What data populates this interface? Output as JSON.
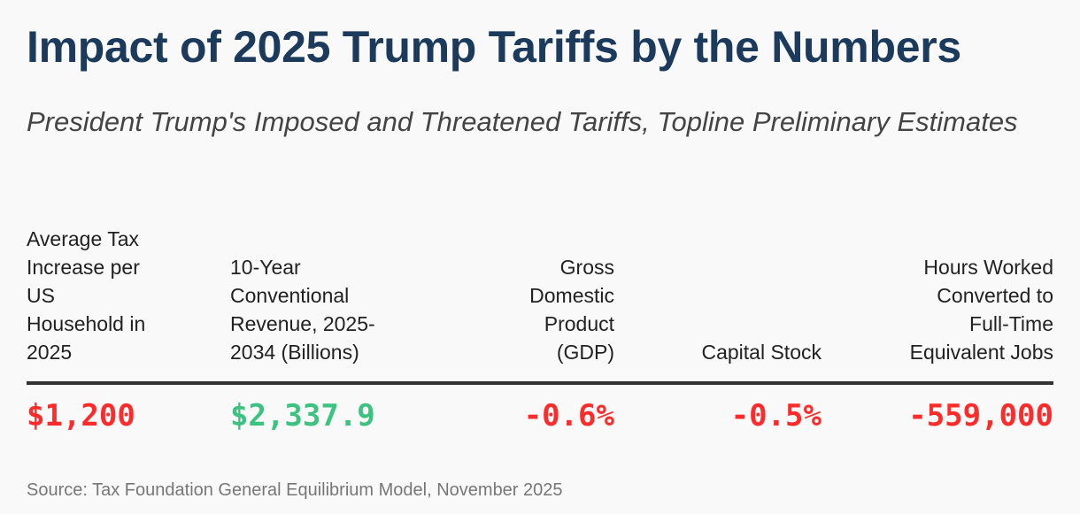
{
  "title": "Impact of 2025 Trump Tariffs by the Numbers",
  "subtitle": "President Trump's Imposed and Threatened Tariffs, Topline Preliminary Estimates",
  "source": "Source: Tax Foundation General Equilibrium Model, November 2025",
  "colors": {
    "title": "#1b3a5c",
    "negative": "#ff2a2a",
    "positive": "#3cc37f"
  },
  "chart_data": {
    "type": "table",
    "columns": [
      {
        "header": [
          "Average Tax",
          "Increase per",
          "US",
          "Household in",
          "2025"
        ],
        "value": "$1,200",
        "sentiment": "negative"
      },
      {
        "header": [
          "10-Year",
          "Conventional",
          "Revenue, 2025-",
          "2034 (Billions)"
        ],
        "value": "$2,337.9",
        "sentiment": "positive"
      },
      {
        "header": [
          "Gross",
          "Domestic",
          "Product",
          "(GDP)"
        ],
        "value": "-0.6%",
        "sentiment": "negative"
      },
      {
        "header": [
          "Capital Stock"
        ],
        "value": "-0.5%",
        "sentiment": "negative"
      },
      {
        "header": [
          "Hours Worked",
          "Converted to",
          "Full-Time",
          "Equivalent Jobs"
        ],
        "value": "-559,000",
        "sentiment": "negative"
      }
    ]
  }
}
